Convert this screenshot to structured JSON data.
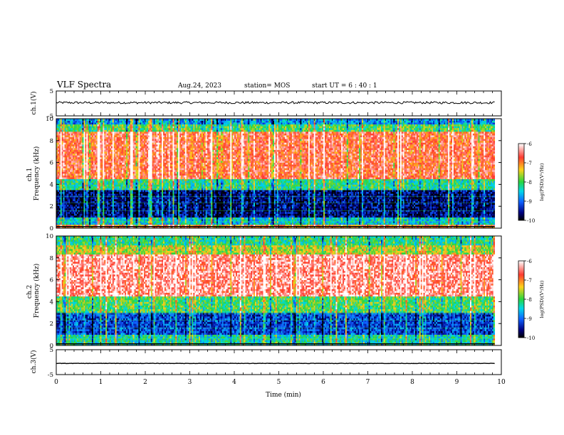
{
  "header": {
    "title": "VLF Spectra",
    "date": "Aug.24, 2023",
    "station": "station= MOS",
    "start": "start  UT =   6 : 40 : 1"
  },
  "colorbar": {
    "label": "log(PSD)(V²/Hz)",
    "ticks": [
      -6,
      -7,
      -8,
      -9,
      -10
    ],
    "colors": [
      "#ffffff",
      "#ff3b30",
      "#ffd21a",
      "#27d640",
      "#00d8e8",
      "#1060ff",
      "#000080",
      "#000000"
    ]
  },
  "chart_data": [
    {
      "name": "ch1-voltage",
      "type": "line",
      "ylabel": "ch.1(V)",
      "ylim": [
        -5,
        5
      ],
      "yticks": [
        5,
        -5
      ],
      "xlim": [
        0,
        10
      ],
      "trace_level": 0.3,
      "x_end": 9.85
    },
    {
      "name": "ch1-spectrogram",
      "type": "heatmap",
      "ylabel": "ch.1\nFrequency (kHz)",
      "ylim": [
        0,
        10
      ],
      "yticks": [
        0,
        2,
        4,
        6,
        8,
        10
      ],
      "xlim": [
        0,
        10
      ],
      "z_range": [
        -10,
        -6
      ],
      "x_end": 9.85,
      "bands": [
        {
          "from_khz": 0,
          "to_khz": 0.4,
          "level": -7.0
        },
        {
          "from_khz": 0.4,
          "to_khz": 1.0,
          "level": -8.5
        },
        {
          "from_khz": 1.0,
          "to_khz": 3.5,
          "level": -9.6
        },
        {
          "from_khz": 3.5,
          "to_khz": 4.5,
          "level": -8.2
        },
        {
          "from_khz": 4.5,
          "to_khz": 8.8,
          "level": -6.7
        },
        {
          "from_khz": 8.8,
          "to_khz": 9.5,
          "level": -8.0
        },
        {
          "from_khz": 9.5,
          "to_khz": 10,
          "level": -8.8
        }
      ]
    },
    {
      "name": "ch2-spectrogram",
      "type": "heatmap",
      "ylabel": "ch.2\nFrequency (kHz)",
      "ylim": [
        0,
        10
      ],
      "yticks": [
        0,
        2,
        4,
        6,
        8,
        10
      ],
      "xlim": [
        0,
        10
      ],
      "z_range": [
        -10,
        -6
      ],
      "x_end": 9.85,
      "bands": [
        {
          "from_khz": 0,
          "to_khz": 1.0,
          "level": -8.3
        },
        {
          "from_khz": 1.0,
          "to_khz": 3.0,
          "level": -9.2
        },
        {
          "from_khz": 3.0,
          "to_khz": 4.5,
          "level": -8.0
        },
        {
          "from_khz": 4.5,
          "to_khz": 8.3,
          "level": -6.4
        },
        {
          "from_khz": 8.3,
          "to_khz": 9.2,
          "level": -7.6
        },
        {
          "from_khz": 9.2,
          "to_khz": 10,
          "level": -8.2
        }
      ]
    },
    {
      "name": "ch3-voltage",
      "type": "line",
      "ylabel": "ch.3(V)",
      "ylim": [
        -5,
        5
      ],
      "yticks": [
        5,
        -5
      ],
      "xlim": [
        0,
        10
      ],
      "trace_level": -0.5,
      "x_end": 9.85,
      "xlabel": "Time  (min)",
      "xticks": [
        0,
        1,
        2,
        3,
        4,
        5,
        6,
        7,
        8,
        9,
        10
      ]
    }
  ]
}
